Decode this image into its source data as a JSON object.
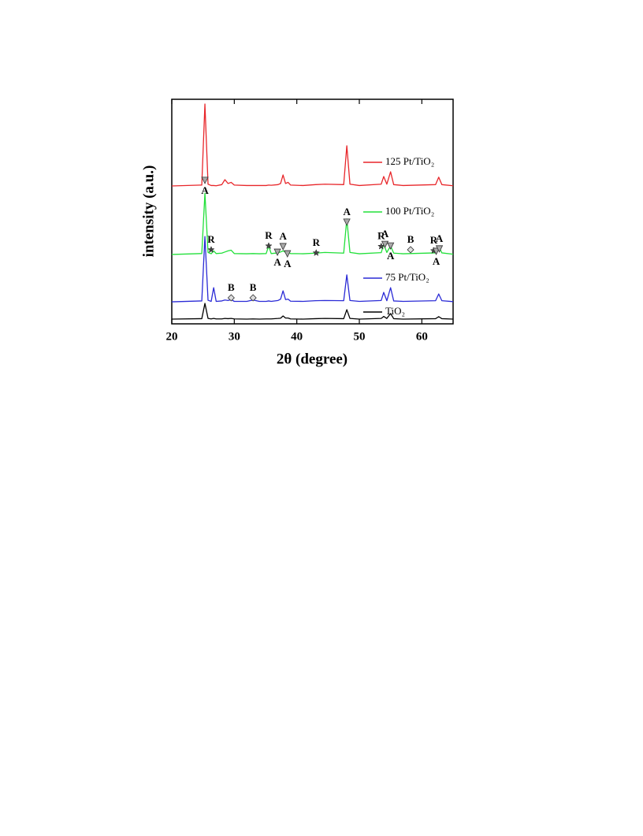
{
  "chart_data": {
    "type": "line",
    "x_label": "2θ (degree)",
    "y_label": "intensity (a.u.)",
    "xlim": [
      20,
      65
    ],
    "xticks": [
      20,
      30,
      40,
      50,
      60
    ],
    "ylim": [
      0,
      100
    ],
    "x": [
      20,
      24.8,
      25.3,
      25.8,
      26.3,
      26.7,
      27.1,
      28,
      28.5,
      29,
      29.5,
      30,
      32,
      33,
      34,
      35.1,
      35.5,
      35.9,
      37,
      37.4,
      37.8,
      38.2,
      38.6,
      39,
      41,
      43,
      44.5,
      47.5,
      48,
      48.5,
      50,
      53.5,
      53.9,
      54.4,
      55,
      55.5,
      57,
      62.2,
      62.7,
      63.2,
      65
    ],
    "series": [
      {
        "name": "125 Pt/TiO₂",
        "color": "#e8262a",
        "values": [
          61.4,
          61.8,
          97.9,
          62.2,
          61.6,
          61.6,
          61.5,
          62,
          64.2,
          62.5,
          63,
          61.8,
          61.6,
          61.6,
          61.6,
          61.6,
          61.8,
          61.7,
          62,
          62.5,
          66.3,
          62.5,
          63,
          61.8,
          61.6,
          62,
          62.2,
          62,
          79.3,
          62.2,
          61.6,
          62.2,
          65.6,
          62.2,
          67.7,
          62,
          61.6,
          62,
          65.3,
          62,
          61.5
        ]
      },
      {
        "name": "100 Pt/TiO₂",
        "color": "#22e03a",
        "values": [
          30.9,
          31.3,
          58.2,
          31.8,
          31.2,
          32.5,
          31.3,
          31.5,
          32,
          32.5,
          32.8,
          31.3,
          31.2,
          31.3,
          31.2,
          31.3,
          34.7,
          31.3,
          31.6,
          32,
          32.5,
          31.8,
          32,
          31.3,
          31.2,
          31.5,
          31.8,
          31.5,
          46.7,
          31.8,
          31.2,
          31.7,
          35.4,
          31.8,
          34.7,
          31.5,
          31.2,
          31.6,
          34.6,
          31.6,
          31
        ]
      },
      {
        "name": "75 Pt/TiO₂",
        "color": "#2a2ad6",
        "values": [
          9.8,
          10.2,
          38.9,
          10.5,
          10,
          16.1,
          10,
          10.2,
          10.6,
          10.4,
          10.8,
          10,
          10,
          10.6,
          10,
          10,
          10.2,
          10,
          10.4,
          11,
          14.7,
          10.8,
          11,
          10.1,
          10,
          10.3,
          10.4,
          10.3,
          21.8,
          10.4,
          10,
          10.4,
          14,
          10.3,
          16.1,
          10.2,
          10,
          10.3,
          13.3,
          10.3,
          9.9
        ]
      },
      {
        "name": "TiO₂",
        "color": "#000000",
        "values": [
          2.1,
          2.3,
          9.1,
          2.4,
          2.2,
          2.4,
          2.2,
          2.2,
          2.4,
          2.3,
          2.4,
          2.2,
          2.1,
          2.2,
          2.1,
          2.2,
          2.2,
          2.2,
          2.4,
          2.5,
          3.5,
          2.6,
          2.6,
          2.2,
          2.1,
          2.3,
          2.4,
          2.3,
          6.3,
          2.4,
          2.1,
          2.4,
          3.3,
          2.4,
          4.6,
          2.3,
          2.1,
          2.3,
          3.2,
          2.3,
          2.1
        ]
      }
    ],
    "annotations": [
      {
        "text": "A",
        "x": 25.3,
        "y": 63.9,
        "marker": "triangle",
        "position": "below"
      },
      {
        "text": "R",
        "x": 26.3,
        "y": 33,
        "marker": "star",
        "position": "above"
      },
      {
        "text": "R",
        "x": 35.5,
        "y": 34.7,
        "marker": "star",
        "position": "above"
      },
      {
        "text": "A",
        "x": 37.8,
        "y": 34.4,
        "marker": "triangle",
        "position": "above"
      },
      {
        "text": "A",
        "x": 36.9,
        "y": 31.9,
        "marker": "triangle",
        "position": "below"
      },
      {
        "text": "A",
        "x": 38.5,
        "y": 31.2,
        "marker": "triangle",
        "position": "below"
      },
      {
        "text": "R",
        "x": 43.1,
        "y": 31.6,
        "marker": "star",
        "position": "above"
      },
      {
        "text": "A",
        "x": 48,
        "y": 45.3,
        "marker": "triangle",
        "position": "above"
      },
      {
        "text": "R",
        "x": 53.5,
        "y": 34.5,
        "marker": "star",
        "position": "above"
      },
      {
        "text": "A",
        "x": 54.1,
        "y": 35.4,
        "marker": "triangle",
        "position": "above"
      },
      {
        "text": "A",
        "x": 55,
        "y": 34.7,
        "marker": "triangle",
        "position": "below"
      },
      {
        "text": "B",
        "x": 58.2,
        "y": 33,
        "marker": "diamond",
        "position": "above"
      },
      {
        "text": "R",
        "x": 61.9,
        "y": 32.6,
        "marker": "star",
        "position": "above"
      },
      {
        "text": "A",
        "x": 62.3,
        "y": 32.3,
        "marker": "triangle",
        "position": "below"
      },
      {
        "text": "A",
        "x": 62.8,
        "y": 33.4,
        "marker": "triangle",
        "position": "above"
      },
      {
        "text": "B",
        "x": 29.5,
        "y": 11.6,
        "marker": "diamond",
        "position": "above"
      },
      {
        "text": "B",
        "x": 33,
        "y": 11.6,
        "marker": "diamond",
        "position": "above"
      }
    ]
  }
}
